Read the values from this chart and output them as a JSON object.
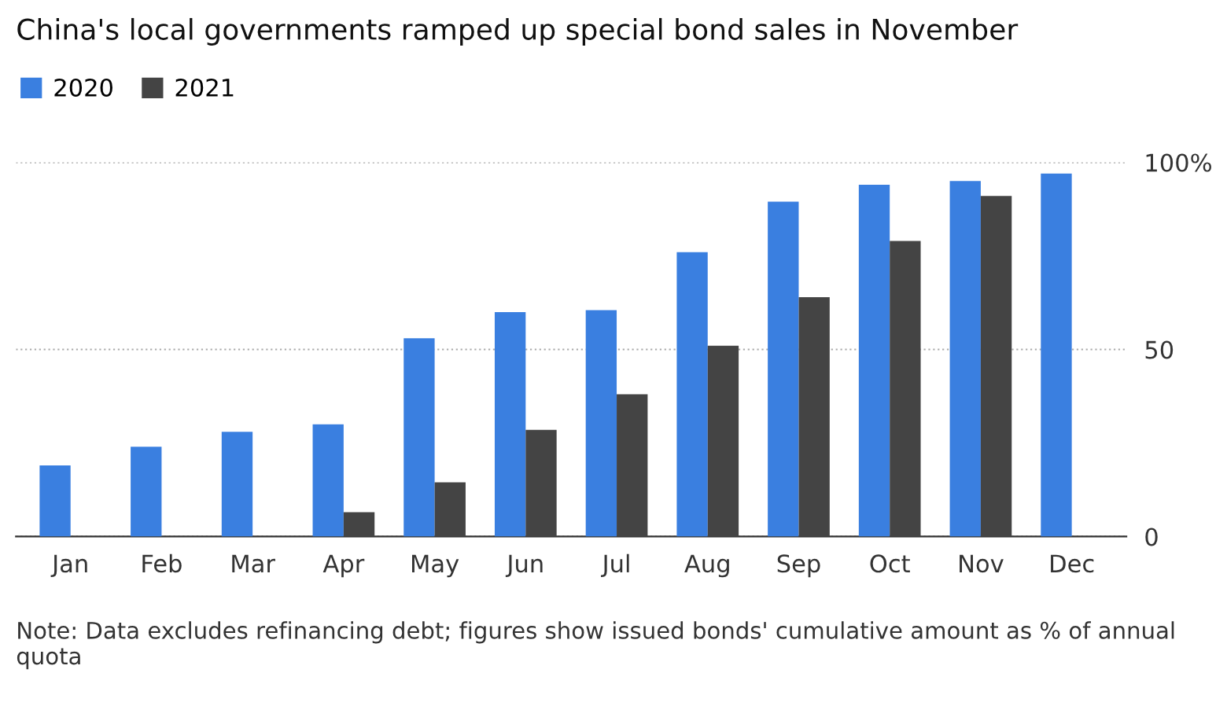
{
  "chart_data": {
    "type": "bar",
    "title": "China's local governments ramped up special bond sales in November",
    "categories": [
      "Jan",
      "Feb",
      "Mar",
      "Apr",
      "May",
      "Jun",
      "Jul",
      "Aug",
      "Sep",
      "Oct",
      "Nov",
      "Dec"
    ],
    "series": [
      {
        "name": "2020",
        "color": "#3a7fe0",
        "values": [
          19,
          24,
          28,
          30,
          53,
          60,
          60.5,
          76,
          89.5,
          94,
          95,
          97
        ]
      },
      {
        "name": "2021",
        "color": "#444444",
        "values": [
          null,
          null,
          null,
          6.5,
          14.5,
          28.5,
          38,
          51,
          64,
          79,
          91,
          null
        ]
      }
    ],
    "ylim": [
      0,
      100
    ],
    "yticks": [
      0,
      50,
      {
        "value": 100,
        "label": "100%"
      }
    ],
    "grid": "y",
    "legend": "top left",
    "annotations": [
      "Note: Data excludes refinancing debt; figures show issued bonds' cumulative amount as % of annual quota"
    ]
  }
}
